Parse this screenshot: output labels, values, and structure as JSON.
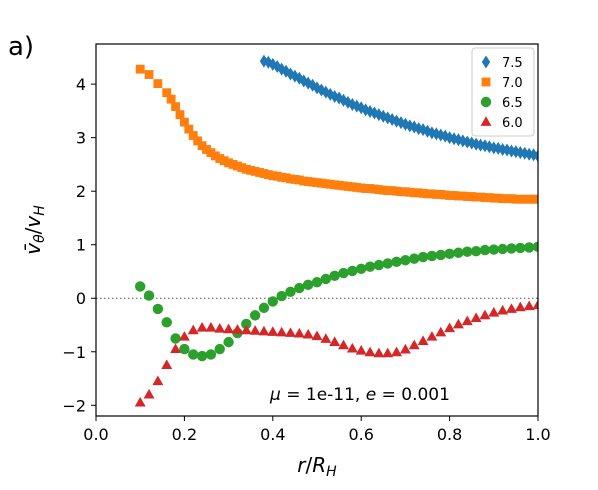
{
  "panel_label": "a)",
  "chart_data": {
    "type": "scatter",
    "xlabel": "r/R_H",
    "ylabel": "v̄_θ/v_H",
    "xlim": [
      0.0,
      1.0
    ],
    "ylim": [
      -2.2,
      4.75
    ],
    "xticks": [
      "0.0",
      "0.2",
      "0.4",
      "0.6",
      "0.8",
      "1.0"
    ],
    "yticks": [
      "−2",
      "−1",
      "0",
      "1",
      "2",
      "3",
      "4"
    ],
    "grid": false,
    "legend_position": "top-right",
    "annotation": "μ = 1e-11, e = 0.001",
    "reference_line": {
      "y": 0,
      "style": "dotted"
    },
    "series": [
      {
        "name": "7.5",
        "marker": "diamond",
        "color": "#1f77b4",
        "x": [
          0.38,
          0.39,
          0.4,
          0.41,
          0.42,
          0.43,
          0.44,
          0.45,
          0.46,
          0.47,
          0.48,
          0.49,
          0.5,
          0.51,
          0.52,
          0.53,
          0.54,
          0.55,
          0.56,
          0.57,
          0.58,
          0.59,
          0.6,
          0.61,
          0.62,
          0.63,
          0.64,
          0.65,
          0.66,
          0.67,
          0.68,
          0.69,
          0.7,
          0.71,
          0.72,
          0.73,
          0.74,
          0.75,
          0.76,
          0.77,
          0.78,
          0.79,
          0.8,
          0.81,
          0.82,
          0.83,
          0.84,
          0.85,
          0.86,
          0.87,
          0.88,
          0.89,
          0.9,
          0.91,
          0.92,
          0.93,
          0.94,
          0.95,
          0.96,
          0.97,
          0.98,
          0.99,
          1.0
        ],
        "y": [
          4.43,
          4.41,
          4.37,
          4.33,
          4.28,
          4.24,
          4.19,
          4.15,
          4.11,
          4.06,
          4.02,
          3.98,
          3.93,
          3.89,
          3.85,
          3.81,
          3.77,
          3.74,
          3.7,
          3.66,
          3.62,
          3.59,
          3.56,
          3.52,
          3.49,
          3.46,
          3.43,
          3.4,
          3.37,
          3.34,
          3.31,
          3.28,
          3.25,
          3.22,
          3.2,
          3.17,
          3.15,
          3.12,
          3.09,
          3.07,
          3.05,
          3.03,
          3.0,
          2.98,
          2.96,
          2.94,
          2.92,
          2.9,
          2.88,
          2.86,
          2.85,
          2.83,
          2.81,
          2.8,
          2.78,
          2.77,
          2.75,
          2.74,
          2.72,
          2.71,
          2.69,
          2.68,
          2.66
        ]
      },
      {
        "name": "7.0",
        "marker": "square",
        "color": "#ff7f0e",
        "x": [
          0.1,
          0.12,
          0.14,
          0.16,
          0.17,
          0.18,
          0.19,
          0.2,
          0.21,
          0.22,
          0.23,
          0.24,
          0.25,
          0.26,
          0.27,
          0.28,
          0.29,
          0.3,
          0.31,
          0.32,
          0.33,
          0.34,
          0.35,
          0.36,
          0.37,
          0.38,
          0.39,
          0.4,
          0.41,
          0.42,
          0.43,
          0.44,
          0.45,
          0.46,
          0.47,
          0.48,
          0.49,
          0.5,
          0.51,
          0.52,
          0.53,
          0.54,
          0.55,
          0.56,
          0.57,
          0.58,
          0.59,
          0.6,
          0.61,
          0.62,
          0.63,
          0.64,
          0.65,
          0.66,
          0.67,
          0.68,
          0.69,
          0.7,
          0.71,
          0.72,
          0.73,
          0.74,
          0.75,
          0.76,
          0.77,
          0.78,
          0.79,
          0.8,
          0.81,
          0.82,
          0.83,
          0.84,
          0.85,
          0.86,
          0.87,
          0.88,
          0.89,
          0.9,
          0.91,
          0.92,
          0.93,
          0.94,
          0.95,
          0.96,
          0.97,
          0.98,
          0.99,
          1.0
        ],
        "y": [
          4.28,
          4.18,
          4.01,
          3.84,
          3.72,
          3.58,
          3.43,
          3.29,
          3.16,
          3.04,
          2.94,
          2.85,
          2.78,
          2.72,
          2.66,
          2.61,
          2.57,
          2.53,
          2.5,
          2.47,
          2.44,
          2.41,
          2.39,
          2.37,
          2.35,
          2.33,
          2.31,
          2.29,
          2.28,
          2.26,
          2.25,
          2.23,
          2.22,
          2.21,
          2.19,
          2.18,
          2.17,
          2.16,
          2.15,
          2.14,
          2.13,
          2.12,
          2.11,
          2.1,
          2.09,
          2.08,
          2.07,
          2.06,
          2.05,
          2.05,
          2.04,
          2.03,
          2.02,
          2.01,
          2.01,
          2.0,
          1.99,
          1.99,
          1.98,
          1.97,
          1.97,
          1.96,
          1.95,
          1.95,
          1.94,
          1.94,
          1.93,
          1.92,
          1.92,
          1.91,
          1.91,
          1.9,
          1.9,
          1.89,
          1.89,
          1.88,
          1.88,
          1.87,
          1.87,
          1.86,
          1.86,
          1.86,
          1.85,
          1.85,
          1.85,
          1.85,
          1.85,
          1.85
        ]
      },
      {
        "name": "6.5",
        "marker": "circle",
        "color": "#2ca02c",
        "x": [
          0.1,
          0.12,
          0.14,
          0.16,
          0.18,
          0.2,
          0.22,
          0.24,
          0.26,
          0.28,
          0.3,
          0.32,
          0.34,
          0.36,
          0.38,
          0.4,
          0.42,
          0.44,
          0.46,
          0.48,
          0.5,
          0.52,
          0.54,
          0.56,
          0.58,
          0.6,
          0.62,
          0.64,
          0.66,
          0.68,
          0.7,
          0.72,
          0.74,
          0.76,
          0.78,
          0.8,
          0.82,
          0.84,
          0.86,
          0.88,
          0.9,
          0.92,
          0.94,
          0.96,
          0.98,
          1.0
        ],
        "y": [
          0.22,
          0.05,
          -0.2,
          -0.45,
          -0.75,
          -0.95,
          -1.05,
          -1.08,
          -1.05,
          -0.95,
          -0.82,
          -0.65,
          -0.48,
          -0.32,
          -0.18,
          -0.06,
          0.04,
          0.12,
          0.19,
          0.25,
          0.3,
          0.36,
          0.42,
          0.47,
          0.51,
          0.55,
          0.59,
          0.62,
          0.65,
          0.68,
          0.71,
          0.74,
          0.77,
          0.79,
          0.81,
          0.83,
          0.85,
          0.87,
          0.88,
          0.9,
          0.91,
          0.92,
          0.93,
          0.94,
          0.95,
          0.96
        ]
      },
      {
        "name": "6.0",
        "marker": "triangle",
        "color": "#d62728",
        "x": [
          0.1,
          0.12,
          0.14,
          0.16,
          0.18,
          0.2,
          0.22,
          0.24,
          0.26,
          0.28,
          0.3,
          0.32,
          0.34,
          0.36,
          0.38,
          0.4,
          0.42,
          0.44,
          0.46,
          0.48,
          0.5,
          0.52,
          0.54,
          0.56,
          0.58,
          0.6,
          0.62,
          0.64,
          0.66,
          0.68,
          0.7,
          0.72,
          0.74,
          0.76,
          0.78,
          0.8,
          0.82,
          0.84,
          0.86,
          0.88,
          0.9,
          0.92,
          0.94,
          0.96,
          0.98,
          1.0
        ],
        "y": [
          -1.95,
          -1.8,
          -1.55,
          -1.25,
          -0.95,
          -0.72,
          -0.6,
          -0.55,
          -0.55,
          -0.57,
          -0.58,
          -0.59,
          -0.6,
          -0.61,
          -0.62,
          -0.63,
          -0.64,
          -0.65,
          -0.66,
          -0.68,
          -0.71,
          -0.76,
          -0.82,
          -0.88,
          -0.94,
          -0.98,
          -1.01,
          -1.03,
          -1.03,
          -1.01,
          -0.96,
          -0.88,
          -0.8,
          -0.72,
          -0.64,
          -0.56,
          -0.49,
          -0.43,
          -0.37,
          -0.32,
          -0.27,
          -0.23,
          -0.2,
          -0.17,
          -0.15,
          -0.13
        ]
      }
    ]
  }
}
